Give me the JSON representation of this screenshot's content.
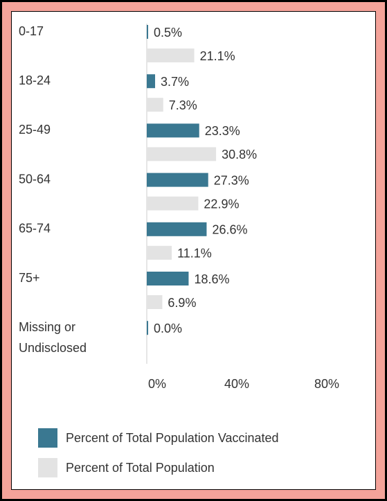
{
  "chart_data": {
    "type": "barh",
    "categories": [
      "0-17",
      "18-24",
      "25-49",
      "50-64",
      "65-74",
      "75+",
      "Missing or Undisclosed"
    ],
    "series": [
      {
        "name": "Percent of Total Population Vaccinated",
        "color": "#3a7891",
        "values": [
          0.5,
          3.7,
          23.3,
          27.3,
          26.6,
          18.6,
          0.0
        ],
        "value_labels": [
          "0.5%",
          "3.7%",
          "23.3%",
          "27.3%",
          "26.6%",
          "18.6%",
          "0.0%"
        ]
      },
      {
        "name": "Percent of Total Population",
        "color": "#e3e3e3",
        "values": [
          21.1,
          7.3,
          30.8,
          22.9,
          11.1,
          6.9,
          null
        ],
        "value_labels": [
          "21.1%",
          "7.3%",
          "30.8%",
          "22.9%",
          "11.1%",
          "6.9%",
          null
        ]
      }
    ],
    "xlim": [
      0,
      100
    ],
    "xticks": [
      {
        "value": 0,
        "label": "0%"
      },
      {
        "value": 40,
        "label": "40%"
      },
      {
        "value": 80,
        "label": "80%"
      }
    ]
  }
}
